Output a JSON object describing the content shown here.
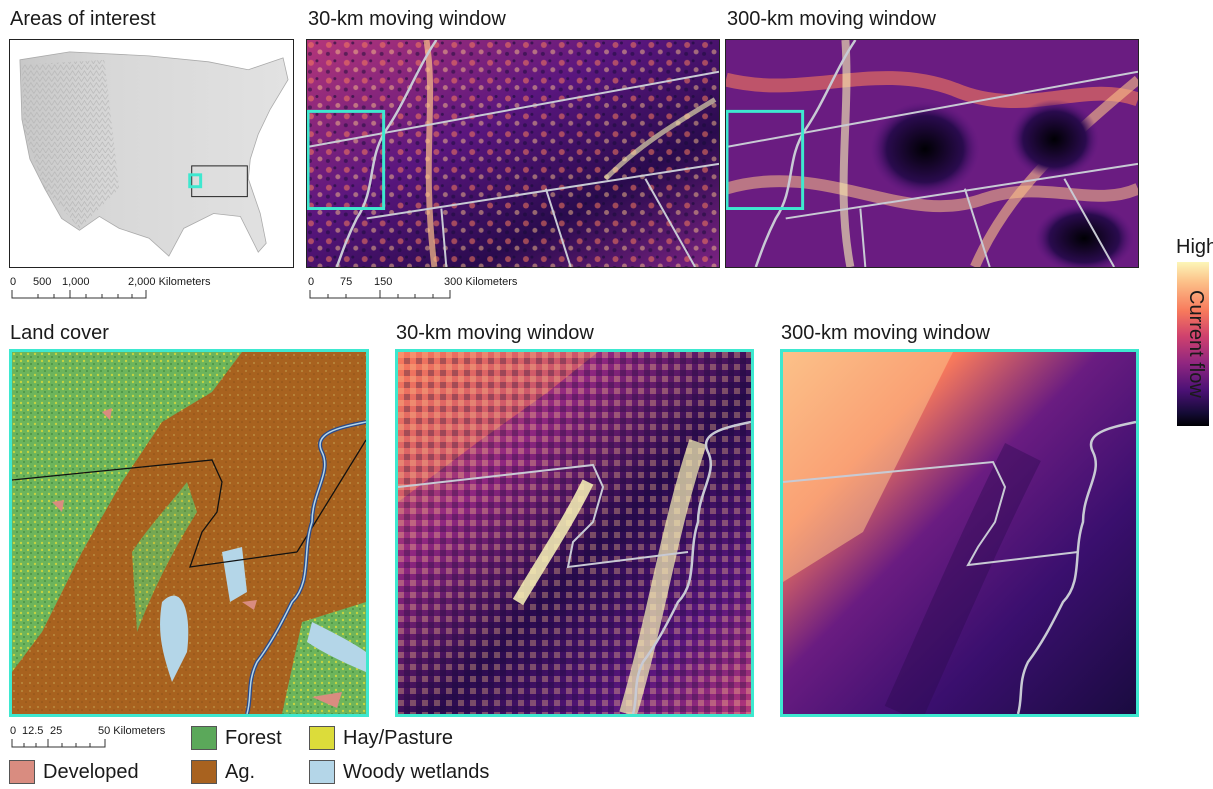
{
  "titles": {
    "areas_of_interest": "Areas of interest",
    "top_30km": "30-km moving window",
    "top_300km": "300-km moving window",
    "land_cover": "Land cover",
    "bottom_30km": "30-km moving window",
    "bottom_300km": "300-km moving window"
  },
  "scalebars": {
    "overview": {
      "ticks": [
        "0",
        "500",
        "1,000",
        "2,000 Kilometers"
      ]
    },
    "regional": {
      "ticks": [
        "0",
        "75",
        "150",
        "300 Kilometers"
      ]
    },
    "local": {
      "ticks": [
        "0",
        "12.5",
        "25",
        "50 Kilometers"
      ]
    }
  },
  "land_cover_legend": [
    {
      "label": "Forest",
      "color": "#5ba85a"
    },
    {
      "label": "Hay/Pasture",
      "color": "#dcdc3a"
    },
    {
      "label": "Developed",
      "color": "#d98c80"
    },
    {
      "label": "Ag.",
      "color": "#a8621f"
    },
    {
      "label": "Woody wetlands",
      "color": "#b4d6e8"
    }
  ],
  "colorbar": {
    "high_label": "High",
    "title": "Current flow",
    "colormap": "magma"
  },
  "colors": {
    "highlight": "#3ee8cf",
    "boundary": "#c8cad4"
  }
}
